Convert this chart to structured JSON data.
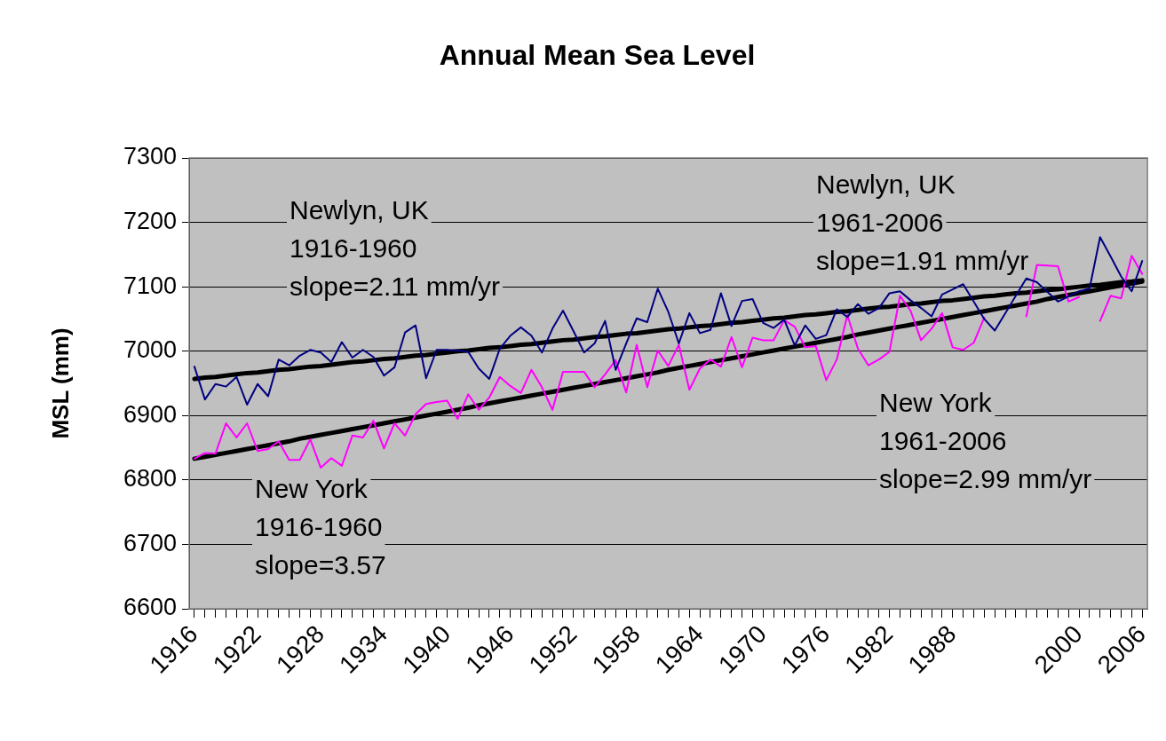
{
  "chart_data": {
    "type": "line",
    "title": "Annual Mean Sea Level",
    "ylabel": "MSL (mm)",
    "x": [
      1916,
      1917,
      1918,
      1919,
      1920,
      1921,
      1922,
      1923,
      1924,
      1925,
      1926,
      1927,
      1928,
      1929,
      1930,
      1931,
      1932,
      1933,
      1934,
      1935,
      1936,
      1937,
      1938,
      1939,
      1940,
      1941,
      1942,
      1943,
      1944,
      1945,
      1946,
      1947,
      1948,
      1949,
      1950,
      1951,
      1952,
      1953,
      1954,
      1955,
      1956,
      1957,
      1958,
      1959,
      1960,
      1961,
      1962,
      1963,
      1964,
      1965,
      1966,
      1967,
      1968,
      1969,
      1970,
      1971,
      1972,
      1973,
      1974,
      1975,
      1976,
      1977,
      1978,
      1979,
      1980,
      1981,
      1982,
      1983,
      1984,
      1985,
      1986,
      1987,
      1988,
      1989,
      1990,
      1991,
      1992,
      1993,
      1994,
      1995,
      1996,
      1997,
      1998,
      1999,
      2000,
      2001,
      2002,
      2003,
      2004,
      2005,
      2006
    ],
    "series": [
      {
        "color": "#000080",
        "values": [
          6976,
          6925,
          6949,
          6945,
          6960,
          6917,
          6949,
          6930,
          6987,
          6978,
          6993,
          7002,
          6998,
          6983,
          7014,
          6990,
          7002,
          6991,
          6962,
          6975,
          7029,
          7040,
          6958,
          7002,
          7002,
          7001,
          6999,
          6973,
          6957,
          7004,
          7024,
          7037,
          7024,
          6998,
          7035,
          7063,
          7031,
          6998,
          7012,
          7047,
          6971,
          7012,
          7051,
          7045,
          7097,
          7061,
          7012,
          7059,
          7028,
          7033,
          7090,
          7039,
          7078,
          7081,
          7044,
          7036,
          7049,
          7009,
          7040,
          7019,
          7025,
          7065,
          7053,
          7073,
          7058,
          7067,
          7090,
          7093,
          7079,
          7067,
          7054,
          7088,
          7096,
          7104,
          7077,
          7050,
          7032,
          7059,
          7086,
          7113,
          7107,
          7092,
          7077,
          7085,
          7093,
          7097,
          7177,
          7147,
          7116,
          7093,
          7140
        ]
      },
      {
        "color": "#ff00ff",
        "values": [
          6833,
          6842,
          6841,
          6888,
          6866,
          6888,
          6845,
          6848,
          6860,
          6831,
          6831,
          6863,
          6819,
          6834,
          6822,
          6869,
          6866,
          6892,
          6849,
          6888,
          6869,
          6902,
          6918,
          6921,
          6923,
          6895,
          6933,
          6909,
          6928,
          6960,
          6946,
          6935,
          6971,
          6944,
          6909,
          6968,
          6968,
          6968,
          6944,
          6964,
          6986,
          6936,
          7010,
          6944,
          7001,
          6977,
          7010,
          6940,
          6973,
          6987,
          6976,
          7022,
          6975,
          7021,
          7017,
          7017,
          7048,
          7038,
          7006,
          7008,
          6955,
          6987,
          7056,
          7004,
          6978,
          6987,
          6999,
          7086,
          7063,
          7017,
          7035,
          7059,
          7006,
          7002,
          7013,
          7052,
          null,
          null,
          null,
          7054,
          7134,
          7133,
          7132,
          7077,
          7084,
          null,
          7047,
          7086,
          7082,
          7148,
          7120
        ]
      },
      {
        "type": "line",
        "color": "#000000",
        "values": [
          6957,
          6959,
          6960,
          6962,
          6964,
          6966,
          6967,
          6969,
          6971,
          6972,
          6974,
          6976,
          6977,
          6979,
          6981,
          6983,
          6984,
          6986,
          6988,
          6989,
          6991,
          6993,
          6994,
          6996,
          6998,
          7000,
          7001,
          7003,
          7005,
          7006,
          7008,
          7010,
          7011,
          7013,
          7015,
          7017,
          7018,
          7020,
          7022,
          7023,
          7025,
          7027,
          7028,
          7030,
          7032,
          7034,
          7035,
          7037,
          7039,
          7040,
          7042,
          7044,
          7045,
          7047,
          7049,
          7051,
          7052,
          7054,
          7056,
          7057,
          7059,
          7061,
          7062,
          7064,
          7066,
          7068,
          7069,
          7071,
          7073,
          7074,
          7076,
          7078,
          7079,
          7081,
          7083,
          7085,
          7086,
          7088,
          7090,
          7091,
          7093,
          7095,
          7096,
          7098,
          7100,
          7102,
          7103,
          7105,
          7107,
          7108,
          7110
        ]
      },
      {
        "type": "line",
        "color": "#000000",
        "values": [
          6833,
          6836,
          6839,
          6842,
          6845,
          6848,
          6851,
          6854,
          6857,
          6860,
          6864,
          6867,
          6870,
          6873,
          6876,
          6879,
          6882,
          6885,
          6888,
          6891,
          6894,
          6897,
          6900,
          6903,
          6906,
          6909,
          6912,
          6916,
          6919,
          6922,
          6925,
          6928,
          6931,
          6934,
          6937,
          6940,
          6943,
          6946,
          6949,
          6952,
          6955,
          6958,
          6961,
          6964,
          6967,
          6971,
          6974,
          6977,
          6980,
          6983,
          6986,
          6989,
          6992,
          6995,
          6998,
          7001,
          7004,
          7007,
          7010,
          7013,
          7016,
          7019,
          7022,
          7026,
          7029,
          7032,
          7035,
          7038,
          7041,
          7044,
          7047,
          7050,
          7053,
          7056,
          7059,
          7062,
          7065,
          7068,
          7071,
          7074,
          7077,
          7081,
          7084,
          7087,
          7090,
          7093,
          7096,
          7099,
          7102,
          7105,
          7108
        ]
      }
    ],
    "xlim": [
      1915.5,
      2006.5
    ],
    "xticks": [
      1916,
      {
        "value": 1917,
        "label": null
      },
      {
        "value": 1918,
        "label": null
      },
      {
        "value": 1919,
        "label": null
      },
      {
        "value": 1920,
        "label": null
      },
      {
        "value": 1921,
        "label": null
      },
      1922,
      {
        "value": 1923,
        "label": null
      },
      {
        "value": 1924,
        "label": null
      },
      {
        "value": 1925,
        "label": null
      },
      {
        "value": 1926,
        "label": null
      },
      {
        "value": 1927,
        "label": null
      },
      1928,
      {
        "value": 1929,
        "label": null
      },
      {
        "value": 1930,
        "label": null
      },
      {
        "value": 1931,
        "label": null
      },
      {
        "value": 1932,
        "label": null
      },
      {
        "value": 1933,
        "label": null
      },
      1934,
      {
        "value": 1935,
        "label": null
      },
      {
        "value": 1936,
        "label": null
      },
      {
        "value": 1937,
        "label": null
      },
      {
        "value": 1938,
        "label": null
      },
      {
        "value": 1939,
        "label": null
      },
      1940,
      {
        "value": 1941,
        "label": null
      },
      {
        "value": 1942,
        "label": null
      },
      {
        "value": 1943,
        "label": null
      },
      {
        "value": 1944,
        "label": null
      },
      {
        "value": 1945,
        "label": null
      },
      1946,
      {
        "value": 1947,
        "label": null
      },
      {
        "value": 1948,
        "label": null
      },
      {
        "value": 1949,
        "label": null
      },
      {
        "value": 1950,
        "label": null
      },
      {
        "value": 1951,
        "label": null
      },
      1952,
      {
        "value": 1953,
        "label": null
      },
      {
        "value": 1954,
        "label": null
      },
      {
        "value": 1955,
        "label": null
      },
      {
        "value": 1956,
        "label": null
      },
      {
        "value": 1957,
        "label": null
      },
      1958,
      {
        "value": 1959,
        "label": null
      },
      {
        "value": 1960,
        "label": null
      },
      {
        "value": 1961,
        "label": null
      },
      {
        "value": 1962,
        "label": null
      },
      {
        "value": 1963,
        "label": null
      },
      1964,
      {
        "value": 1965,
        "label": null
      },
      {
        "value": 1966,
        "label": null
      },
      {
        "value": 1967,
        "label": null
      },
      {
        "value": 1968,
        "label": null
      },
      {
        "value": 1969,
        "label": null
      },
      1970,
      {
        "value": 1971,
        "label": null
      },
      {
        "value": 1972,
        "label": null
      },
      {
        "value": 1973,
        "label": null
      },
      {
        "value": 1974,
        "label": null
      },
      {
        "value": 1975,
        "label": null
      },
      1976,
      {
        "value": 1977,
        "label": null
      },
      {
        "value": 1978,
        "label": null
      },
      {
        "value": 1979,
        "label": null
      },
      {
        "value": 1980,
        "label": null
      },
      {
        "value": 1981,
        "label": null
      },
      1982,
      {
        "value": 1983,
        "label": null
      },
      {
        "value": 1984,
        "label": null
      },
      {
        "value": 1985,
        "label": null
      },
      {
        "value": 1986,
        "label": null
      },
      {
        "value": 1987,
        "label": null
      },
      1988,
      {
        "value": 1989,
        "label": null
      },
      {
        "value": 1990,
        "label": null
      },
      {
        "value": 1991,
        "label": null
      },
      {
        "value": 1992,
        "label": null
      },
      {
        "value": 1993,
        "label": null
      },
      {
        "value": 1994,
        "label": null
      },
      {
        "value": 1995,
        "label": null
      },
      {
        "value": 1996,
        "label": null
      },
      {
        "value": 1997,
        "label": null
      },
      {
        "value": 1998,
        "label": null
      },
      {
        "value": 1999,
        "label": null
      },
      2000,
      {
        "value": 2001,
        "label": null
      },
      {
        "value": 2002,
        "label": null
      },
      {
        "value": 2003,
        "label": null
      },
      {
        "value": 2004,
        "label": null
      },
      {
        "value": 2005,
        "label": null
      },
      2006
    ],
    "ylim": [
      6600,
      7300
    ],
    "yticks": [
      6600,
      6700,
      6800,
      6900,
      7000,
      7100,
      7200,
      7300
    ],
    "grid": "y",
    "legend": false,
    "marker": "none",
    "line_style": "solid",
    "annotations": [
      "Newlyn, UK\n1916-1960\nslope=2.11 mm/yr",
      "Newlyn, UK\n1961-2006\nslope=1.91 mm/yr",
      "New York\n1961-2006\nslope=2.99 mm/yr",
      "New York\n1916-1960\nslope=3.57"
    ]
  }
}
